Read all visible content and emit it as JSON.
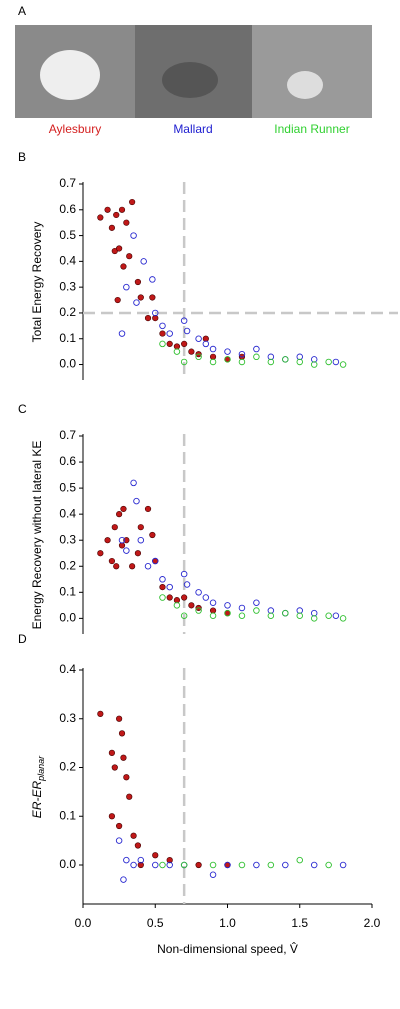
{
  "figure": {
    "panel": "A",
    "breeds": [
      {
        "name": "Aylesbury",
        "color": "#d42020"
      },
      {
        "name": "Mallard",
        "color": "#2020d0"
      },
      {
        "name": "Indian Runner",
        "color": "#30d030"
      }
    ]
  },
  "chart_data": [
    {
      "type": "scatter",
      "panel": "B",
      "ylabel": "Total Energy Recovery",
      "xlim": [
        0,
        2
      ],
      "ylim": [
        -0.06,
        0.7
      ],
      "yticks": [
        {
          "value": 0,
          "label": "0.0"
        },
        {
          "value": 0.1,
          "label": "0.1"
        },
        {
          "value": 0.2,
          "label": "0.2"
        },
        {
          "value": 0.3,
          "label": "0.3"
        },
        {
          "value": 0.4,
          "label": "0.4"
        },
        {
          "value": 0.5,
          "label": "0.5"
        },
        {
          "value": 0.6,
          "label": "0.6"
        },
        {
          "value": 0.7,
          "label": "0.7"
        }
      ],
      "vlines": [
        0.7
      ],
      "hlines": [
        0.2
      ],
      "series": [
        {
          "name": "Aylesbury",
          "color": "#c01818",
          "marker": "filled",
          "x": [
            0.12,
            0.17,
            0.2,
            0.22,
            0.23,
            0.24,
            0.25,
            0.27,
            0.28,
            0.3,
            0.32,
            0.34,
            0.38,
            0.4,
            0.45,
            0.48,
            0.5,
            0.55,
            0.6,
            0.65,
            0.7,
            0.75,
            0.8,
            0.85,
            0.9,
            1.0,
            1.1
          ],
          "y": [
            0.57,
            0.6,
            0.53,
            0.44,
            0.58,
            0.25,
            0.45,
            0.6,
            0.38,
            0.55,
            0.42,
            0.63,
            0.32,
            0.26,
            0.18,
            0.26,
            0.18,
            0.12,
            0.08,
            0.07,
            0.08,
            0.05,
            0.04,
            0.1,
            0.03,
            0.02,
            0.03
          ]
        },
        {
          "name": "Mallard",
          "color": "#2a2ad0",
          "marker": "open",
          "x": [
            0.27,
            0.3,
            0.35,
            0.37,
            0.42,
            0.48,
            0.5,
            0.55,
            0.6,
            0.7,
            0.72,
            0.8,
            0.85,
            0.9,
            1.0,
            1.1,
            1.2,
            1.3,
            1.4,
            1.5,
            1.6,
            1.75
          ],
          "y": [
            0.12,
            0.3,
            0.5,
            0.24,
            0.4,
            0.33,
            0.2,
            0.15,
            0.12,
            0.17,
            0.13,
            0.1,
            0.08,
            0.06,
            0.05,
            0.04,
            0.06,
            0.03,
            0.02,
            0.03,
            0.02,
            0.01
          ]
        },
        {
          "name": "Indian Runner",
          "color": "#30c030",
          "marker": "open",
          "x": [
            0.55,
            0.65,
            0.7,
            0.8,
            0.9,
            1.0,
            1.1,
            1.2,
            1.3,
            1.4,
            1.5,
            1.6,
            1.7,
            1.8
          ],
          "y": [
            0.08,
            0.05,
            0.01,
            0.03,
            0.01,
            0.02,
            0.01,
            0.03,
            0.01,
            0.02,
            0.01,
            0.0,
            0.01,
            0.0
          ]
        }
      ]
    },
    {
      "type": "scatter",
      "panel": "C",
      "ylabel": "Energy Recovery without lateral KE",
      "xlim": [
        0,
        2
      ],
      "ylim": [
        -0.06,
        0.7
      ],
      "yticks": [
        {
          "value": 0,
          "label": "0.0"
        },
        {
          "value": 0.1,
          "label": "0.1"
        },
        {
          "value": 0.2,
          "label": "0.2"
        },
        {
          "value": 0.3,
          "label": "0.3"
        },
        {
          "value": 0.4,
          "label": "0.4"
        },
        {
          "value": 0.5,
          "label": "0.5"
        },
        {
          "value": 0.6,
          "label": "0.6"
        },
        {
          "value": 0.7,
          "label": "0.7"
        }
      ],
      "vlines": [
        0.7
      ],
      "hlines": [],
      "series": [
        {
          "name": "Aylesbury",
          "color": "#c01818",
          "marker": "filled",
          "x": [
            0.12,
            0.17,
            0.2,
            0.22,
            0.23,
            0.25,
            0.27,
            0.28,
            0.3,
            0.34,
            0.38,
            0.4,
            0.45,
            0.48,
            0.5,
            0.55,
            0.6,
            0.65,
            0.7,
            0.75,
            0.8,
            0.9,
            1.0
          ],
          "y": [
            0.25,
            0.3,
            0.22,
            0.35,
            0.2,
            0.4,
            0.28,
            0.42,
            0.3,
            0.2,
            0.25,
            0.35,
            0.42,
            0.32,
            0.22,
            0.12,
            0.08,
            0.07,
            0.08,
            0.05,
            0.04,
            0.03,
            0.02
          ]
        },
        {
          "name": "Mallard",
          "color": "#2a2ad0",
          "marker": "open",
          "x": [
            0.27,
            0.3,
            0.35,
            0.37,
            0.4,
            0.45,
            0.5,
            0.55,
            0.6,
            0.7,
            0.72,
            0.8,
            0.85,
            0.9,
            1.0,
            1.1,
            1.2,
            1.3,
            1.4,
            1.5,
            1.6,
            1.75
          ],
          "y": [
            0.3,
            0.26,
            0.52,
            0.45,
            0.3,
            0.2,
            0.22,
            0.15,
            0.12,
            0.17,
            0.13,
            0.1,
            0.08,
            0.06,
            0.05,
            0.04,
            0.06,
            0.03,
            0.02,
            0.03,
            0.02,
            0.01
          ]
        },
        {
          "name": "Indian Runner",
          "color": "#30c030",
          "marker": "open",
          "x": [
            0.55,
            0.65,
            0.7,
            0.8,
            0.9,
            1.0,
            1.1,
            1.2,
            1.3,
            1.4,
            1.5,
            1.6,
            1.7,
            1.8
          ],
          "y": [
            0.08,
            0.05,
            0.01,
            0.03,
            0.01,
            0.02,
            0.01,
            0.03,
            0.01,
            0.02,
            0.01,
            0.0,
            0.01,
            0.0
          ]
        }
      ]
    },
    {
      "type": "scatter",
      "panel": "D",
      "ylabel": "ER-ER",
      "ylabel_sub": "planar",
      "xlabel": "Non-dimensional speed, V̂",
      "xlim": [
        0,
        2
      ],
      "ylim": [
        -0.08,
        0.4
      ],
      "xticks": [
        {
          "value": 0,
          "label": "0.0"
        },
        {
          "value": 0.5,
          "label": "0.5"
        },
        {
          "value": 1,
          "label": "1.0"
        },
        {
          "value": 1.5,
          "label": "1.5"
        },
        {
          "value": 2,
          "label": "2.0"
        }
      ],
      "yticks": [
        {
          "value": 0,
          "label": "0.0"
        },
        {
          "value": 0.1,
          "label": "0.1"
        },
        {
          "value": 0.2,
          "label": "0.2"
        },
        {
          "value": 0.3,
          "label": "0.3"
        },
        {
          "value": 0.4,
          "label": "0.4"
        }
      ],
      "vlines": [
        0.7
      ],
      "hlines": [],
      "series": [
        {
          "name": "Aylesbury",
          "color": "#c01818",
          "marker": "filled",
          "x": [
            0.12,
            0.2,
            0.22,
            0.25,
            0.27,
            0.28,
            0.3,
            0.32,
            0.2,
            0.25,
            0.35,
            0.38,
            0.4,
            0.5,
            0.6,
            0.8,
            1.0
          ],
          "y": [
            0.31,
            0.23,
            0.2,
            0.3,
            0.27,
            0.22,
            0.18,
            0.14,
            0.1,
            0.08,
            0.06,
            0.04,
            0.0,
            0.02,
            0.01,
            0.0,
            0.0
          ]
        },
        {
          "name": "Mallard",
          "color": "#2a2ad0",
          "marker": "open",
          "x": [
            0.25,
            0.28,
            0.3,
            0.35,
            0.4,
            0.5,
            0.6,
            0.7,
            0.9,
            1.0,
            1.2,
            1.4,
            1.6,
            1.8
          ],
          "y": [
            0.05,
            -0.03,
            0.01,
            0.0,
            0.01,
            0.0,
            0.0,
            0.0,
            -0.02,
            0.0,
            0.0,
            0.0,
            0.0,
            0.0
          ]
        },
        {
          "name": "Indian Runner",
          "color": "#30c030",
          "marker": "open",
          "x": [
            0.55,
            0.7,
            0.9,
            1.1,
            1.3,
            1.5,
            1.7
          ],
          "y": [
            0.0,
            0.0,
            0.0,
            0.0,
            0.0,
            0.01,
            0.0
          ]
        }
      ]
    }
  ]
}
